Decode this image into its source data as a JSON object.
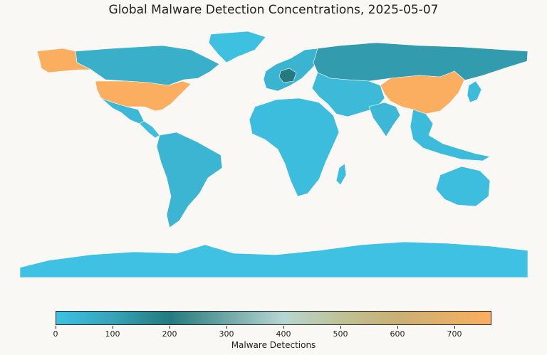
{
  "title": "Global Malware Detection Concentrations, 2025-05-07",
  "colorbar": {
    "label": "Malware Detections",
    "min": 0,
    "max": 765,
    "ticks": [
      "0",
      "100",
      "200",
      "300",
      "400",
      "500",
      "600",
      "700"
    ],
    "tick_values": [
      0,
      100,
      200,
      300,
      400,
      500,
      600,
      700
    ],
    "colors": [
      {
        "value": 0,
        "color": "#3ec1e3"
      },
      {
        "value": 100,
        "color": "#36a3b8"
      },
      {
        "value": 200,
        "color": "#247a7f"
      },
      {
        "value": 300,
        "color": "#6fa7a6"
      },
      {
        "value": 400,
        "color": "#b7d6d2"
      },
      {
        "value": 500,
        "color": "#bfc298"
      },
      {
        "value": 600,
        "color": "#c9b074"
      },
      {
        "value": 765,
        "color": "#fbae60"
      }
    ]
  },
  "map": {
    "ocean_color": "#faf8f5",
    "border_color": "#ffffff",
    "regions": [
      {
        "name": "Alaska",
        "value": 765
      },
      {
        "name": "Canada",
        "value": 60
      },
      {
        "name": "Greenland",
        "value": 5
      },
      {
        "name": "United States",
        "value": 765
      },
      {
        "name": "Mexico",
        "value": 30
      },
      {
        "name": "Central America",
        "value": 10
      },
      {
        "name": "South America",
        "value": 40
      },
      {
        "name": "Europe",
        "value": 45
      },
      {
        "name": "Germany",
        "value": 200
      },
      {
        "name": "Russia",
        "value": 120
      },
      {
        "name": "Africa",
        "value": 15
      },
      {
        "name": "Middle East",
        "value": 25
      },
      {
        "name": "India",
        "value": 30
      },
      {
        "name": "China",
        "value": 765
      },
      {
        "name": "Southeast Asia",
        "value": 20
      },
      {
        "name": "Japan",
        "value": 20
      },
      {
        "name": "Australia",
        "value": 10
      },
      {
        "name": "Madagascar",
        "value": 10
      },
      {
        "name": "Antarctica",
        "value": 0
      }
    ]
  }
}
